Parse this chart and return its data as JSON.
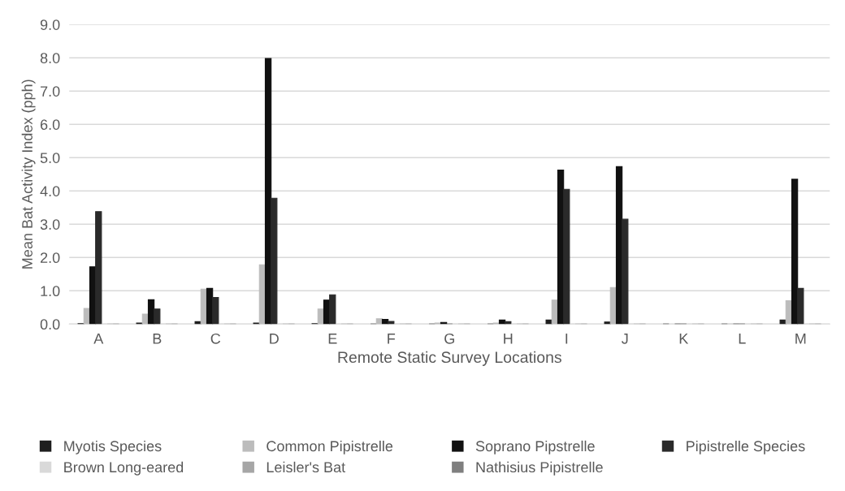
{
  "chart_data": {
    "type": "bar",
    "xlabel": "Remote Static Survey Locations",
    "ylabel": "Mean Bat Activity Index (pph)",
    "categories": [
      "A",
      "B",
      "C",
      "D",
      "E",
      "F",
      "G",
      "H",
      "I",
      "J",
      "K",
      "L",
      "M"
    ],
    "series": [
      {
        "name": "Myotis Species",
        "color": "#1e1e1e",
        "values": [
          0.01,
          0.03,
          0.07,
          0.03,
          0.01,
          0,
          0,
          0,
          0.12,
          0.06,
          0,
          0,
          0.12
        ]
      },
      {
        "name": "Common Pipistrelle",
        "color": "#bcbcbc",
        "values": [
          0.47,
          0.3,
          1.05,
          1.78,
          0.45,
          0.16,
          0.03,
          0.03,
          0.72,
          1.1,
          null,
          0,
          0.7
        ]
      },
      {
        "name": "Soprano Pipstrelle",
        "color": "#111111",
        "values": [
          1.72,
          0.73,
          1.07,
          7.98,
          0.72,
          0.14,
          0.05,
          0.12,
          4.63,
          4.73,
          0,
          0,
          4.35
        ]
      },
      {
        "name": "Pipistrelle Species",
        "color": "#2a2a2a",
        "values": [
          3.38,
          0.45,
          0.8,
          3.78,
          0.88,
          0.08,
          0,
          0.07,
          4.05,
          3.15,
          0,
          0,
          1.07
        ]
      },
      {
        "name": "Brown Long-eared",
        "color": "#d9d9d9",
        "values": [
          0,
          0,
          0,
          0,
          0,
          0,
          0,
          0,
          0,
          0,
          0,
          0,
          0
        ]
      },
      {
        "name": "Leisler's Bat",
        "color": "#a6a6a6",
        "values": [
          0,
          0,
          0,
          0,
          0,
          0,
          0,
          0,
          0,
          0,
          0,
          0,
          0
        ]
      },
      {
        "name": "Nathisius Pipistrelle",
        "color": "#7f7f7f",
        "values": [
          0,
          0,
          0,
          0,
          0,
          0,
          0,
          0,
          0,
          0,
          0,
          0,
          0
        ]
      }
    ],
    "ylim": [
      0,
      9
    ],
    "yticks": [
      {
        "value": 0,
        "label": "0.0"
      },
      {
        "value": 1,
        "label": "1.0"
      },
      {
        "value": 2,
        "label": "2.0"
      },
      {
        "value": 3,
        "label": "3.0"
      },
      {
        "value": 4,
        "label": "4.0"
      },
      {
        "value": 5,
        "label": "5.0"
      },
      {
        "value": 6,
        "label": "6.0"
      },
      {
        "value": 7,
        "label": "7.0"
      },
      {
        "value": 8,
        "label": "8.0"
      },
      {
        "value": 9,
        "label": "9.0"
      }
    ],
    "grid": "y",
    "legend": "bottom"
  }
}
